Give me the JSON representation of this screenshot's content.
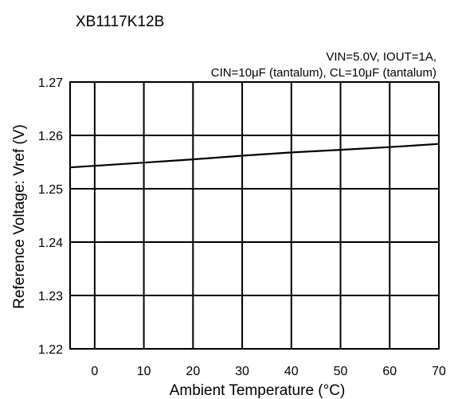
{
  "chart_data": {
    "type": "line",
    "title": "XB1117K12B",
    "condition_line1": "VIN=5.0V, IOUT=1A,",
    "condition_line2": "CIN=10μF (tantalum), CL=10μF (tantalum)",
    "xlabel": "Ambient Temperature (°C)",
    "ylabel": "Reference Voltage: Vref (V)",
    "xlim": [
      -5,
      70
    ],
    "ylim": [
      1.22,
      1.27
    ],
    "x_ticks": [
      0,
      10,
      20,
      30,
      40,
      50,
      60,
      70
    ],
    "y_ticks": [
      1.22,
      1.23,
      1.24,
      1.25,
      1.26,
      1.27
    ],
    "x_tick_labels": [
      "0",
      "10",
      "20",
      "30",
      "40",
      "50",
      "60",
      "70"
    ],
    "y_tick_labels": [
      "1.22",
      "1.23",
      "1.24",
      "1.25",
      "1.26",
      "1.27"
    ],
    "grid": true,
    "series": [
      {
        "x": [
          -5,
          0,
          10,
          20,
          30,
          40,
          50,
          60,
          70
        ],
        "y": [
          1.254,
          1.2543,
          1.2549,
          1.2555,
          1.2562,
          1.2568,
          1.2573,
          1.2578,
          1.2584
        ]
      }
    ]
  }
}
